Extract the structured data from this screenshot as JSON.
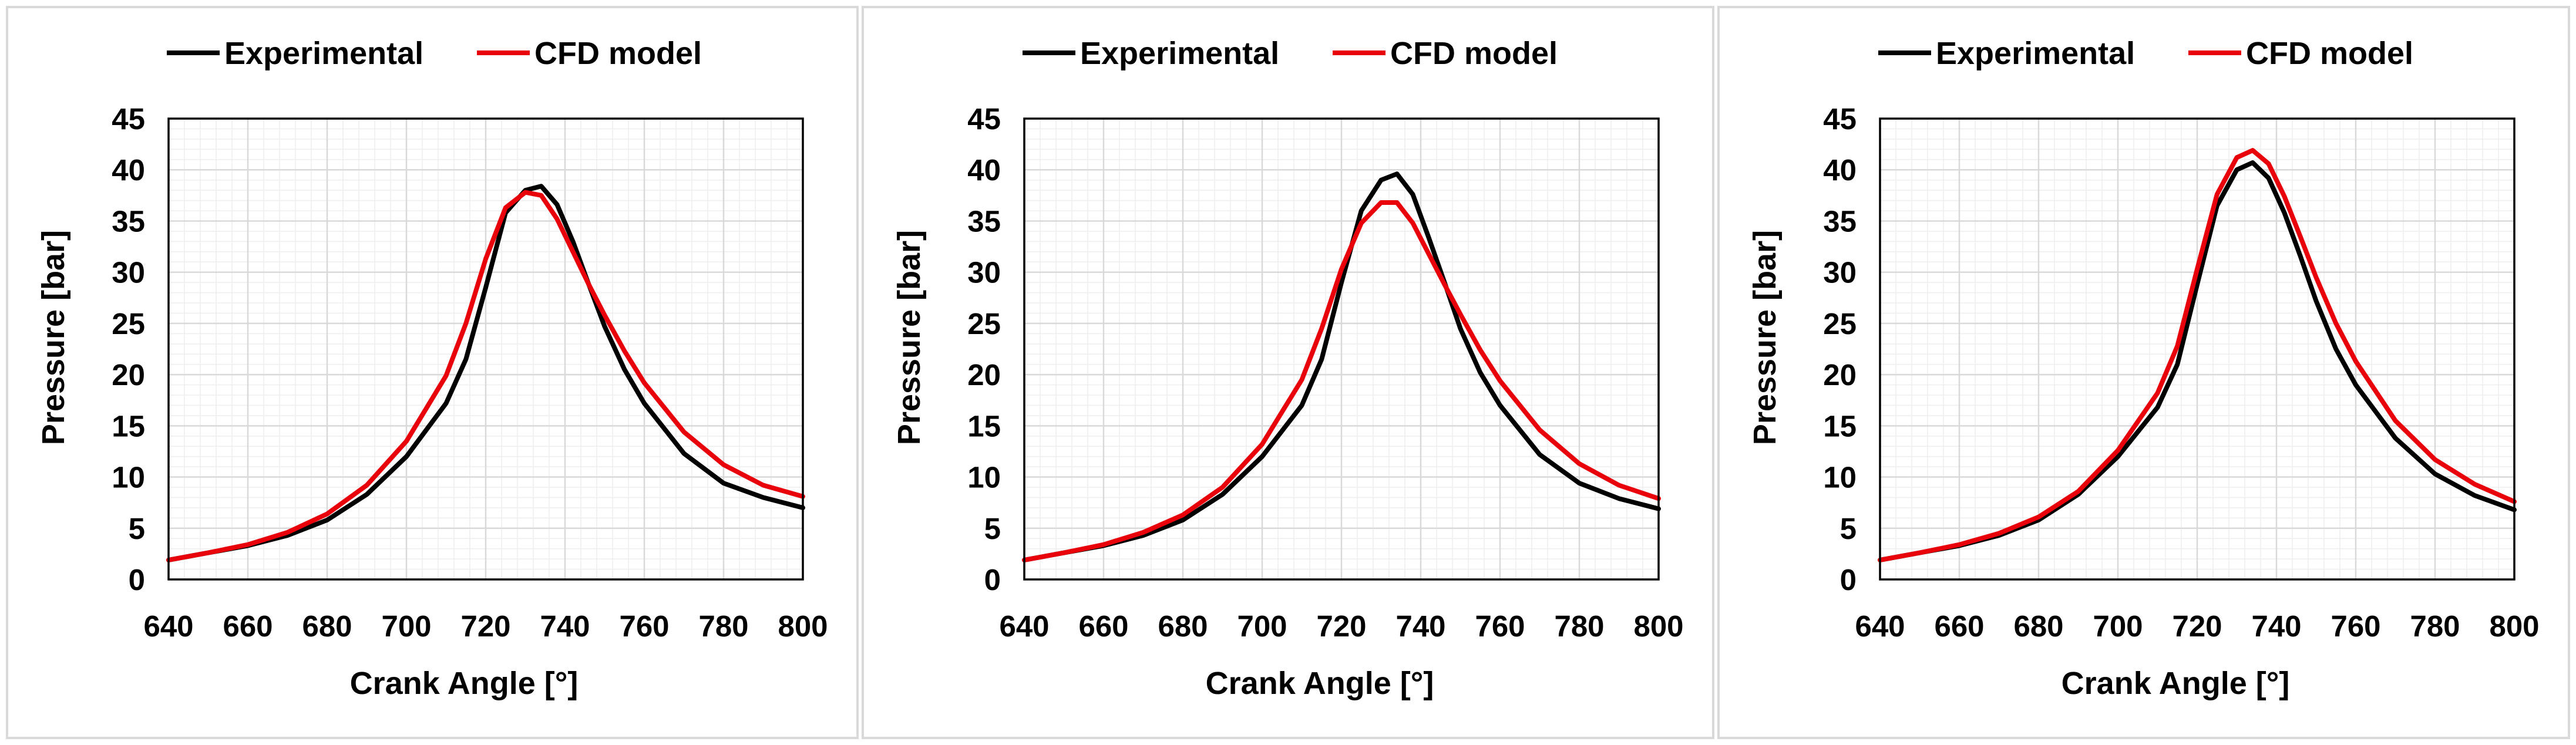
{
  "chart_data": [
    {
      "type": "line",
      "title": "",
      "xlabel": "Crank Angle [°]",
      "ylabel": "Pressure [bar]",
      "xlim": [
        640,
        800
      ],
      "ylim": [
        0,
        45
      ],
      "x_ticks": [
        640,
        660,
        680,
        700,
        720,
        740,
        760,
        780,
        800
      ],
      "y_ticks": [
        0,
        5,
        10,
        15,
        20,
        25,
        30,
        35,
        40,
        45
      ],
      "grid": true,
      "legend_position": "top",
      "x": [
        640,
        650,
        660,
        670,
        680,
        690,
        700,
        710,
        715,
        720,
        725,
        730,
        734,
        738,
        742,
        746,
        750,
        755,
        760,
        770,
        780,
        790,
        800
      ],
      "series": [
        {
          "name": "Experimental",
          "color": "#000000",
          "values": [
            1.9,
            2.6,
            3.3,
            4.3,
            5.8,
            8.3,
            12.0,
            17.2,
            21.5,
            28.5,
            35.8,
            38.0,
            38.4,
            36.6,
            33.0,
            28.8,
            24.7,
            20.5,
            17.2,
            12.3,
            9.4,
            8.0,
            7.0
          ]
        },
        {
          "name": "CFD model",
          "color": "#e8000b",
          "values": [
            1.9,
            2.6,
            3.4,
            4.6,
            6.4,
            9.2,
            13.5,
            19.9,
            25.0,
            31.3,
            36.3,
            37.8,
            37.5,
            35.2,
            32.0,
            28.8,
            25.8,
            22.3,
            19.2,
            14.4,
            11.2,
            9.2,
            8.1
          ]
        }
      ]
    },
    {
      "type": "line",
      "title": "",
      "xlabel": "Crank Angle [°]",
      "ylabel": "Pressure [bar]",
      "xlim": [
        640,
        800
      ],
      "ylim": [
        0,
        45
      ],
      "x_ticks": [
        640,
        660,
        680,
        700,
        720,
        740,
        760,
        780,
        800
      ],
      "y_ticks": [
        0,
        5,
        10,
        15,
        20,
        25,
        30,
        35,
        40,
        45
      ],
      "grid": true,
      "legend_position": "top",
      "x": [
        640,
        650,
        660,
        670,
        680,
        690,
        700,
        710,
        715,
        720,
        725,
        730,
        734,
        738,
        742,
        746,
        750,
        755,
        760,
        770,
        780,
        790,
        800
      ],
      "series": [
        {
          "name": "Experimental",
          "color": "#000000",
          "values": [
            1.9,
            2.6,
            3.3,
            4.3,
            5.8,
            8.3,
            12.0,
            17.0,
            21.5,
            29.0,
            36.0,
            39.0,
            39.6,
            37.6,
            33.4,
            29.0,
            24.5,
            20.2,
            17.0,
            12.2,
            9.4,
            7.9,
            6.9
          ]
        },
        {
          "name": "CFD model",
          "color": "#e8000b",
          "values": [
            1.9,
            2.6,
            3.4,
            4.6,
            6.3,
            9.0,
            13.2,
            19.5,
            24.5,
            30.3,
            34.8,
            36.8,
            36.8,
            34.8,
            31.8,
            28.8,
            25.9,
            22.4,
            19.4,
            14.6,
            11.3,
            9.2,
            7.9
          ]
        }
      ]
    },
    {
      "type": "line",
      "title": "",
      "xlabel": "Crank Angle [°]",
      "ylabel": "Pressure [bar]",
      "xlim": [
        640,
        800
      ],
      "ylim": [
        0,
        45
      ],
      "x_ticks": [
        640,
        660,
        680,
        700,
        720,
        740,
        760,
        780,
        800
      ],
      "y_ticks": [
        0,
        5,
        10,
        15,
        20,
        25,
        30,
        35,
        40,
        45
      ],
      "grid": true,
      "legend_position": "top",
      "x": [
        640,
        650,
        660,
        670,
        680,
        690,
        700,
        710,
        715,
        720,
        725,
        730,
        734,
        738,
        742,
        746,
        750,
        755,
        760,
        770,
        780,
        790,
        800
      ],
      "series": [
        {
          "name": "Experimental",
          "color": "#000000",
          "values": [
            1.9,
            2.6,
            3.3,
            4.3,
            5.8,
            8.3,
            12.0,
            16.8,
            21.0,
            28.8,
            36.5,
            40.0,
            40.7,
            39.2,
            35.8,
            31.6,
            27.2,
            22.5,
            19.0,
            13.8,
            10.3,
            8.2,
            6.8
          ]
        },
        {
          "name": "CFD model",
          "color": "#e8000b",
          "values": [
            1.9,
            2.6,
            3.4,
            4.5,
            6.1,
            8.6,
            12.6,
            18.2,
            22.8,
            30.3,
            37.6,
            41.2,
            41.9,
            40.6,
            37.4,
            33.5,
            29.5,
            25.0,
            21.3,
            15.5,
            11.7,
            9.3,
            7.6
          ]
        }
      ]
    }
  ]
}
